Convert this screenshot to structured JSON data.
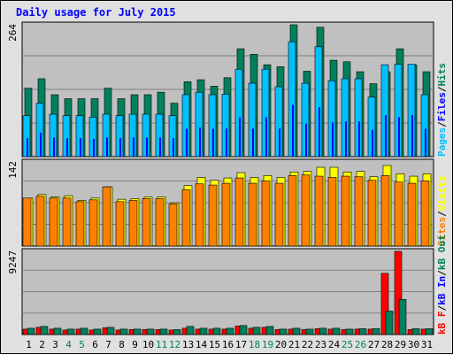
{
  "title": "Daily usage for July 2015",
  "colors": {
    "hits": "#00805c",
    "files": "#00c0ff",
    "pages": "#00e0ff",
    "visits": "#ffff00",
    "sites": "#ff8000",
    "kbytes": "#ff0000",
    "kb_in": "#0000ff",
    "kb_out": "#00805c",
    "plot_bg": "#c0c0c0",
    "weekend": "#00805c"
  },
  "chart_data": [
    {
      "type": "bar",
      "panel": "hits-files-pages",
      "ymax_label": "264",
      "ylim": [
        0,
        264
      ],
      "legend": [
        {
          "text": "Pages",
          "color": "#00c0ff"
        },
        {
          "text": "Files",
          "color": "#0000ff"
        },
        {
          "text": "Hits",
          "color": "#00805c"
        }
      ],
      "series": [
        {
          "name": "Hits",
          "values": [
            137,
            156,
            124,
            116,
            116,
            116,
            137,
            116,
            124,
            124,
            129,
            107,
            150,
            154,
            141,
            158,
            216,
            205,
            184,
            180,
            264,
            171,
            259,
            193,
            190,
            170,
            146,
            170,
            216,
            184,
            170
          ]
        },
        {
          "name": "Files",
          "values": [
            82,
            107,
            85,
            82,
            82,
            79,
            85,
            82,
            85,
            85,
            85,
            82,
            124,
            129,
            124,
            125,
            175,
            147,
            175,
            140,
            230,
            147,
            220,
            152,
            156,
            156,
            119,
            184,
            185,
            185,
            124
          ]
        },
        {
          "name": "Pages",
          "values": [
            82,
            107,
            85,
            82,
            82,
            79,
            85,
            82,
            85,
            85,
            85,
            82,
            124,
            129,
            124,
            125,
            175,
            125,
            175,
            125,
            230,
            147,
            220,
            152,
            156,
            156,
            119,
            184,
            175,
            185,
            124
          ]
        }
      ]
    },
    {
      "type": "bar",
      "panel": "visits-sites",
      "ymax_label": "142",
      "ylim": [
        0,
        142
      ],
      "legend": [
        {
          "text": "Sites",
          "color": "#ff8000"
        },
        {
          "text": "Visits",
          "color": "#ffff00"
        }
      ],
      "series": [
        {
          "name": "Visits",
          "values": [
            81,
            87,
            83,
            85,
            77,
            81,
            100,
            79,
            80,
            83,
            83,
            73,
            102,
            116,
            111,
            115,
            124,
            116,
            119,
            116,
            125,
            126,
            133,
            133,
            125,
            126,
            117,
            136,
            122,
            118,
            122
          ]
        },
        {
          "name": "Sites",
          "values": [
            81,
            84,
            81,
            81,
            75,
            78,
            100,
            75,
            77,
            80,
            80,
            71,
            95,
            105,
            103,
            106,
            115,
            106,
            110,
            106,
            119,
            120,
            118,
            116,
            118,
            117,
            111,
            119,
            108,
            106,
            110
          ]
        }
      ]
    },
    {
      "type": "bar",
      "panel": "kbytes",
      "ymax_label": "9247",
      "ylim": [
        0,
        9247
      ],
      "legend": [
        {
          "text": "kB F",
          "color": "#ff0000"
        },
        {
          "text": "kB In",
          "color": "#0000ff"
        },
        {
          "text": "kB Out",
          "color": "#00805c"
        }
      ],
      "series": [
        {
          "name": "kB F",
          "values": [
            600,
            800,
            600,
            500,
            600,
            500,
            750,
            500,
            550,
            550,
            550,
            500,
            700,
            600,
            600,
            600,
            950,
            700,
            800,
            550,
            600,
            550,
            650,
            600,
            550,
            600,
            600,
            6800,
            9247,
            550,
            600
          ]
        },
        {
          "name": "kB Out",
          "values": [
            700,
            900,
            700,
            600,
            700,
            600,
            800,
            600,
            600,
            600,
            600,
            550,
            900,
            700,
            700,
            700,
            1000,
            800,
            900,
            600,
            700,
            600,
            700,
            700,
            600,
            650,
            650,
            2600,
            3900,
            650,
            650
          ]
        }
      ],
      "x_tick_labels": [
        "1",
        "2",
        "3",
        "4",
        "5",
        "6",
        "7",
        "8",
        "9",
        "10",
        "11",
        "12",
        "13",
        "14",
        "15",
        "16",
        "17",
        "18",
        "19",
        "20",
        "21",
        "22",
        "23",
        "24",
        "25",
        "26",
        "27",
        "28",
        "29",
        "30",
        "31"
      ],
      "weekend_days": [
        4,
        5,
        11,
        12,
        18,
        19,
        25,
        26
      ]
    }
  ]
}
